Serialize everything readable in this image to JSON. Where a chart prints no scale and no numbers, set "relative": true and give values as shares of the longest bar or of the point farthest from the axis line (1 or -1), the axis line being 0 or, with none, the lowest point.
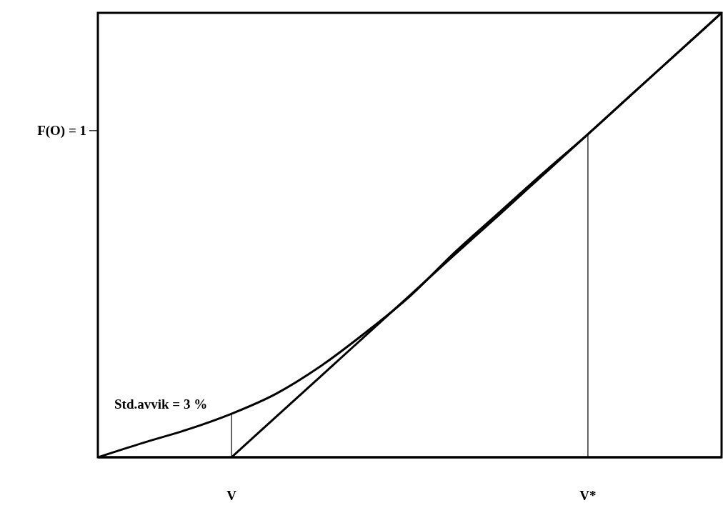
{
  "chart_data": {
    "type": "line",
    "relative": true,
    "categories": [
      null,
      null,
      null,
      "V",
      null,
      null,
      null,
      null,
      null,
      null,
      null,
      "V*",
      null,
      null,
      null
    ],
    "series": [
      {
        "color": "#000000",
        "values": [
          0,
          0.032,
          0.062,
          0.098,
          0.143,
          0.205,
          0.28,
          0.362,
          0.46,
          0.55,
          0.64,
          0.727,
          0.818,
          0.909,
          1
        ]
      },
      {
        "color": "#000000",
        "values": [
          null,
          null,
          null,
          0,
          0.091,
          0.182,
          0.273,
          0.364,
          0.455,
          0.545,
          0.636,
          0.727,
          0.818,
          0.909,
          1
        ]
      }
    ],
    "ref_lines": [
      {
        "axis": "x",
        "value": "V",
        "color": "#000000"
      },
      {
        "axis": "x",
        "value": "V*",
        "color": "#000000"
      }
    ],
    "annotations": [
      "F(O) = 1",
      "Std.avvik = 3 %"
    ]
  }
}
